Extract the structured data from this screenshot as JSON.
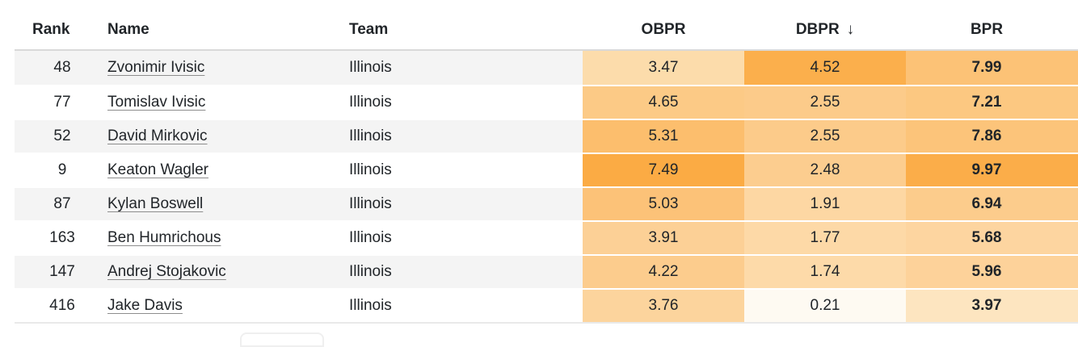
{
  "table": {
    "columns": [
      {
        "key": "rank",
        "label": "Rank"
      },
      {
        "key": "name",
        "label": "Name"
      },
      {
        "key": "team",
        "label": "Team"
      },
      {
        "key": "obpr",
        "label": "OBPR"
      },
      {
        "key": "dbpr",
        "label": "DBPR"
      },
      {
        "key": "bpr",
        "label": "BPR"
      }
    ],
    "sort": {
      "column": "dbpr",
      "direction": "descending",
      "indicator": "↓"
    },
    "rows": [
      {
        "rank": "48",
        "name": "Zvonimir Ivisic",
        "team": "Illinois",
        "obpr": "3.47",
        "dbpr": "4.52",
        "bpr": "7.99",
        "cell_colors": {
          "obpr": "#fcdcab",
          "dbpr": "#fbaf4c",
          "bpr": "#fcc276"
        },
        "striped": true
      },
      {
        "rank": "77",
        "name": "Tomislav Ivisic",
        "team": "Illinois",
        "obpr": "4.65",
        "dbpr": "2.55",
        "bpr": "7.21",
        "cell_colors": {
          "obpr": "#fcca86",
          "dbpr": "#fccb8a",
          "bpr": "#fcc881"
        },
        "striped": false
      },
      {
        "rank": "52",
        "name": "David Mirkovic",
        "team": "Illinois",
        "obpr": "5.31",
        "dbpr": "2.55",
        "bpr": "7.86",
        "cell_colors": {
          "obpr": "#fcbe6d",
          "dbpr": "#fccb8a",
          "bpr": "#fcc47a"
        },
        "striped": true
      },
      {
        "rank": "9",
        "name": "Keaton Wagler",
        "team": "Illinois",
        "obpr": "7.49",
        "dbpr": "2.48",
        "bpr": "9.97",
        "cell_colors": {
          "obpr": "#fbab44",
          "dbpr": "#fccd8f",
          "bpr": "#fbad49"
        },
        "striped": false
      },
      {
        "rank": "87",
        "name": "Kylan Boswell",
        "team": "Illinois",
        "obpr": "5.03",
        "dbpr": "1.91",
        "bpr": "6.94",
        "cell_colors": {
          "obpr": "#fcc278",
          "dbpr": "#fdd7a3",
          "bpr": "#fccc8c"
        },
        "striped": true
      },
      {
        "rank": "163",
        "name": "Ben Humrichous",
        "team": "Illinois",
        "obpr": "3.91",
        "dbpr": "1.77",
        "bpr": "5.68",
        "cell_colors": {
          "obpr": "#fcd096",
          "dbpr": "#fdd9a7",
          "bpr": "#fdd5a0"
        },
        "striped": false
      },
      {
        "rank": "147",
        "name": "Andrej Stojakovic",
        "team": "Illinois",
        "obpr": "4.22",
        "dbpr": "1.74",
        "bpr": "5.96",
        "cell_colors": {
          "obpr": "#fccc8d",
          "dbpr": "#fddaa9",
          "bpr": "#fdd29a"
        },
        "striped": true
      },
      {
        "rank": "416",
        "name": "Jake Davis",
        "team": "Illinois",
        "obpr": "3.76",
        "dbpr": "0.21",
        "bpr": "3.97",
        "cell_colors": {
          "obpr": "#fcd49d",
          "dbpr": "#fefaf2",
          "bpr": "#fde5c0"
        },
        "striped": false
      }
    ]
  },
  "colors": {
    "text": "#212529",
    "row_stripe": "#f4f4f4",
    "header_border": "#d9d9d9",
    "table_bottom_border": "#e9e9e9"
  }
}
